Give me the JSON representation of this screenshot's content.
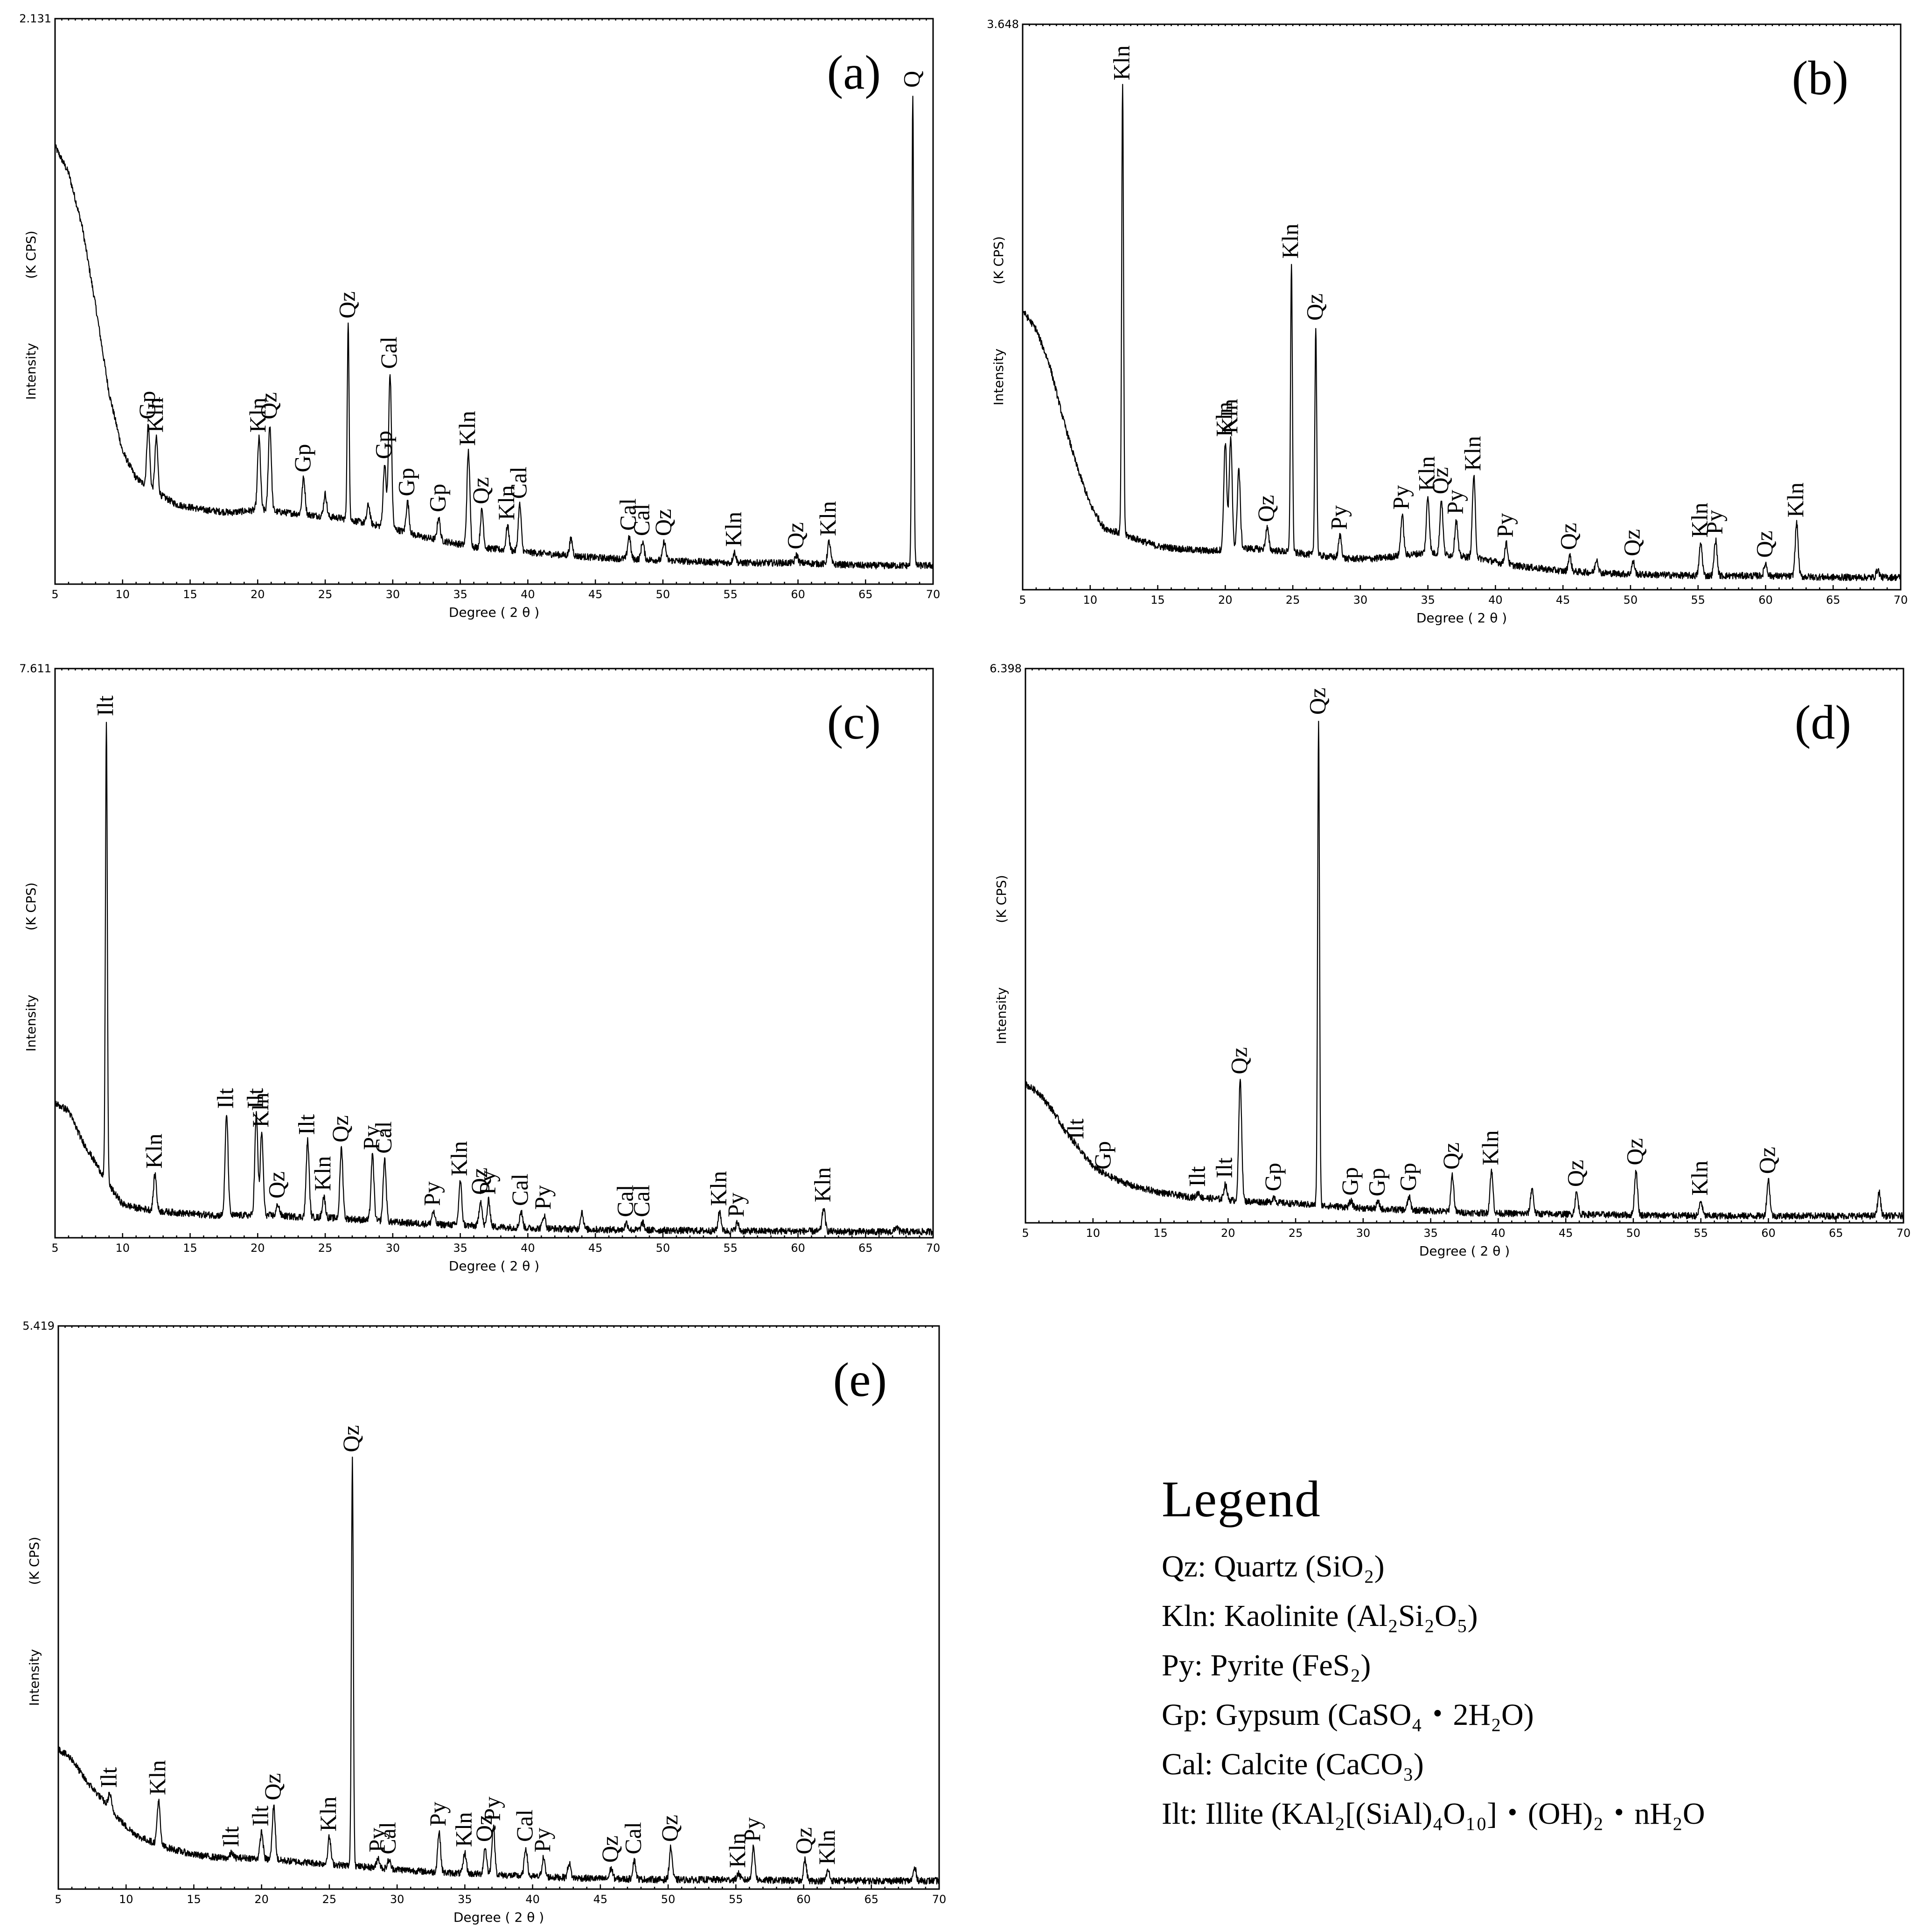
{
  "figure": {
    "x_label": "Degree ( 2 θ )",
    "y_label": "Intensity",
    "y_unit": "(K CPS)"
  },
  "legend": {
    "title": "Legend",
    "entries": [
      {
        "abbr": "Qz",
        "name": "Quartz",
        "formula": "(SiO₂)"
      },
      {
        "abbr": "Kln",
        "name": "Kaolinite",
        "formula": "(Al₂Si₂O₅)"
      },
      {
        "abbr": "Py",
        "name": "Pyrite",
        "formula": "(FeS₂)"
      },
      {
        "abbr": "Gp",
        "name": "Gypsum",
        "formula": "(CaSO₄・2H₂O)"
      },
      {
        "abbr": "Cal",
        "name": "Calcite",
        "formula": "(CaCO₃)"
      },
      {
        "abbr": "Ilt",
        "name": "Illite",
        "formula": "(KAl₂[(SiAl)₄O₁₀]・(OH)₂・nH₂O"
      }
    ]
  },
  "chart_data": [
    {
      "type": "line",
      "panel": "(a)",
      "title": "(a)",
      "xlabel": "Degree ( 2 θ )",
      "ylabel": "Intensity (K CPS)",
      "xlim": [
        5,
        70
      ],
      "ylim": [
        0,
        2.131
      ],
      "ymax_label": "2.131",
      "xticks": [
        5,
        10,
        15,
        20,
        25,
        30,
        35,
        40,
        45,
        50,
        55,
        60,
        65,
        70
      ],
      "background": [
        [
          5,
          1.65
        ],
        [
          6,
          1.55
        ],
        [
          7,
          1.35
        ],
        [
          8,
          1.05
        ],
        [
          9,
          0.72
        ],
        [
          10,
          0.5
        ],
        [
          11,
          0.4
        ],
        [
          12,
          0.36
        ],
        [
          14,
          0.3
        ],
        [
          16,
          0.28
        ],
        [
          18,
          0.27
        ],
        [
          20,
          0.28
        ],
        [
          22,
          0.27
        ],
        [
          24,
          0.26
        ],
        [
          26,
          0.25
        ],
        [
          28,
          0.23
        ],
        [
          30,
          0.21
        ],
        [
          32,
          0.18
        ],
        [
          34,
          0.16
        ],
        [
          36,
          0.14
        ],
        [
          38,
          0.13
        ],
        [
          40,
          0.12
        ],
        [
          45,
          0.1
        ],
        [
          50,
          0.09
        ],
        [
          55,
          0.08
        ],
        [
          60,
          0.08
        ],
        [
          65,
          0.07
        ],
        [
          70,
          0.07
        ]
      ],
      "peaks": [
        {
          "x": 11.9,
          "y": 0.6,
          "label": "Gp"
        },
        {
          "x": 12.5,
          "y": 0.55,
          "label": "Kln"
        },
        {
          "x": 20.1,
          "y": 0.55,
          "label": "Kln"
        },
        {
          "x": 20.9,
          "y": 0.6,
          "label": "Qz"
        },
        {
          "x": 23.4,
          "y": 0.4,
          "label": "Gp"
        },
        {
          "x": 25.0,
          "y": 0.34,
          "label": ""
        },
        {
          "x": 26.7,
          "y": 0.98,
          "label": "Qz"
        },
        {
          "x": 28.2,
          "y": 0.3,
          "label": ""
        },
        {
          "x": 29.4,
          "y": 0.45,
          "label": "Gp"
        },
        {
          "x": 29.8,
          "y": 0.79,
          "label": "Cal"
        },
        {
          "x": 31.1,
          "y": 0.31,
          "label": "Gp"
        },
        {
          "x": 33.4,
          "y": 0.25,
          "label": "Gp"
        },
        {
          "x": 35.6,
          "y": 0.5,
          "label": "Kln"
        },
        {
          "x": 36.6,
          "y": 0.28,
          "label": "Qz"
        },
        {
          "x": 38.5,
          "y": 0.22,
          "label": "Kln"
        },
        {
          "x": 39.4,
          "y": 0.3,
          "label": "Cal"
        },
        {
          "x": 43.2,
          "y": 0.17,
          "label": ""
        },
        {
          "x": 47.5,
          "y": 0.18,
          "label": "Cal"
        },
        {
          "x": 48.5,
          "y": 0.16,
          "label": "Cal"
        },
        {
          "x": 50.1,
          "y": 0.16,
          "label": "Qz"
        },
        {
          "x": 55.3,
          "y": 0.12,
          "label": "Kln"
        },
        {
          "x": 59.9,
          "y": 0.11,
          "label": "Qz"
        },
        {
          "x": 62.3,
          "y": 0.16,
          "label": "Kln"
        },
        {
          "x": 68.5,
          "y": 1.85,
          "label": "Q"
        }
      ]
    },
    {
      "type": "line",
      "panel": "(b)",
      "title": "(b)",
      "xlabel": "Degree ( 2 θ )",
      "ylabel": "Intensity (K CPS)",
      "xlim": [
        5,
        70
      ],
      "ylim": [
        0,
        3.648
      ],
      "ymax_label": "3.648",
      "xticks": [
        5,
        10,
        15,
        20,
        25,
        30,
        35,
        40,
        45,
        50,
        55,
        60,
        65,
        70
      ],
      "background": [
        [
          5,
          1.8
        ],
        [
          6,
          1.68
        ],
        [
          7,
          1.45
        ],
        [
          8,
          1.1
        ],
        [
          9,
          0.8
        ],
        [
          10,
          0.55
        ],
        [
          11,
          0.4
        ],
        [
          13,
          0.34
        ],
        [
          15,
          0.28
        ],
        [
          17,
          0.26
        ],
        [
          19,
          0.25
        ],
        [
          21,
          0.27
        ],
        [
          23,
          0.26
        ],
        [
          25,
          0.24
        ],
        [
          27,
          0.22
        ],
        [
          29,
          0.2
        ],
        [
          31,
          0.2
        ],
        [
          33,
          0.22
        ],
        [
          35,
          0.24
        ],
        [
          37,
          0.22
        ],
        [
          39,
          0.2
        ],
        [
          41,
          0.16
        ],
        [
          45,
          0.12
        ],
        [
          50,
          0.1
        ],
        [
          55,
          0.09
        ],
        [
          60,
          0.09
        ],
        [
          65,
          0.08
        ],
        [
          70,
          0.08
        ]
      ],
      "peaks": [
        {
          "x": 12.4,
          "y": 3.25,
          "label": "Kln"
        },
        {
          "x": 20.0,
          "y": 0.95,
          "label": "Kln"
        },
        {
          "x": 20.4,
          "y": 0.97,
          "label": "Kln"
        },
        {
          "x": 21.0,
          "y": 0.78,
          "label": ""
        },
        {
          "x": 23.1,
          "y": 0.4,
          "label": "Qz"
        },
        {
          "x": 24.9,
          "y": 2.1,
          "label": "Kln"
        },
        {
          "x": 26.7,
          "y": 1.7,
          "label": "Qz"
        },
        {
          "x": 28.5,
          "y": 0.35,
          "label": "Py"
        },
        {
          "x": 33.1,
          "y": 0.48,
          "label": "Py"
        },
        {
          "x": 35.0,
          "y": 0.6,
          "label": "Kln"
        },
        {
          "x": 36.0,
          "y": 0.58,
          "label": "Qz"
        },
        {
          "x": 37.1,
          "y": 0.45,
          "label": "Py"
        },
        {
          "x": 38.4,
          "y": 0.73,
          "label": "Kln"
        },
        {
          "x": 40.8,
          "y": 0.3,
          "label": "Py"
        },
        {
          "x": 45.5,
          "y": 0.22,
          "label": "Qz"
        },
        {
          "x": 47.5,
          "y": 0.2,
          "label": ""
        },
        {
          "x": 50.2,
          "y": 0.18,
          "label": "Qz"
        },
        {
          "x": 55.2,
          "y": 0.3,
          "label": "Kln"
        },
        {
          "x": 56.3,
          "y": 0.32,
          "label": "Py"
        },
        {
          "x": 60.0,
          "y": 0.17,
          "label": "Qz"
        },
        {
          "x": 62.3,
          "y": 0.43,
          "label": "Kln"
        },
        {
          "x": 68.3,
          "y": 0.13,
          "label": ""
        }
      ]
    },
    {
      "type": "line",
      "panel": "(c)",
      "title": "(c)",
      "xlabel": "Degree ( 2 θ )",
      "ylabel": "Intensity (K CPS)",
      "xlim": [
        5,
        70
      ],
      "ylim": [
        0,
        7.611
      ],
      "ymax_label": "7.611",
      "xticks": [
        5,
        10,
        15,
        20,
        25,
        30,
        35,
        40,
        45,
        50,
        55,
        60,
        65,
        70
      ],
      "background": [
        [
          5,
          1.8
        ],
        [
          6,
          1.7
        ],
        [
          7,
          1.3
        ],
        [
          8,
          1.0
        ],
        [
          9,
          0.7
        ],
        [
          10,
          0.45
        ],
        [
          11,
          0.4
        ],
        [
          13,
          0.35
        ],
        [
          15,
          0.32
        ],
        [
          17,
          0.3
        ],
        [
          19,
          0.3
        ],
        [
          21,
          0.3
        ],
        [
          23,
          0.28
        ],
        [
          25,
          0.27
        ],
        [
          27,
          0.25
        ],
        [
          29,
          0.22
        ],
        [
          31,
          0.2
        ],
        [
          33,
          0.18
        ],
        [
          35,
          0.17
        ],
        [
          37,
          0.15
        ],
        [
          40,
          0.13
        ],
        [
          45,
          0.11
        ],
        [
          50,
          0.1
        ],
        [
          55,
          0.09
        ],
        [
          60,
          0.09
        ],
        [
          65,
          0.08
        ],
        [
          70,
          0.08
        ]
      ],
      "peaks": [
        {
          "x": 8.8,
          "y": 6.9,
          "label": "Ilt"
        },
        {
          "x": 12.4,
          "y": 0.85,
          "label": "Kln"
        },
        {
          "x": 17.7,
          "y": 1.65,
          "label": "Ilt"
        },
        {
          "x": 19.9,
          "y": 1.65,
          "label": "Ilt"
        },
        {
          "x": 20.3,
          "y": 1.4,
          "label": "Kln"
        },
        {
          "x": 21.5,
          "y": 0.45,
          "label": "Qz"
        },
        {
          "x": 23.7,
          "y": 1.3,
          "label": "Ilt"
        },
        {
          "x": 24.9,
          "y": 0.55,
          "label": "Kln"
        },
        {
          "x": 26.2,
          "y": 1.2,
          "label": "Qz"
        },
        {
          "x": 28.5,
          "y": 1.1,
          "label": "Py"
        },
        {
          "x": 29.4,
          "y": 1.05,
          "label": "Cal"
        },
        {
          "x": 33.0,
          "y": 0.35,
          "label": "Py"
        },
        {
          "x": 35.0,
          "y": 0.75,
          "label": "Kln"
        },
        {
          "x": 36.5,
          "y": 0.5,
          "label": "Qz"
        },
        {
          "x": 37.1,
          "y": 0.5,
          "label": "Py"
        },
        {
          "x": 39.5,
          "y": 0.35,
          "label": "Cal"
        },
        {
          "x": 41.2,
          "y": 0.3,
          "label": "Py"
        },
        {
          "x": 44.0,
          "y": 0.35,
          "label": ""
        },
        {
          "x": 47.3,
          "y": 0.2,
          "label": "Cal"
        },
        {
          "x": 48.5,
          "y": 0.2,
          "label": "Cal"
        },
        {
          "x": 54.2,
          "y": 0.35,
          "label": "Kln"
        },
        {
          "x": 55.5,
          "y": 0.2,
          "label": "Py"
        },
        {
          "x": 61.9,
          "y": 0.4,
          "label": "Kln"
        },
        {
          "x": 67.3,
          "y": 0.15,
          "label": ""
        }
      ]
    },
    {
      "type": "line",
      "panel": "(d)",
      "title": "(d)",
      "xlabel": "Degree ( 2 θ )",
      "ylabel": "Intensity (K CPS)",
      "xlim": [
        5,
        70
      ],
      "ylim": [
        0,
        6.398
      ],
      "ymax_label": "6.398",
      "xticks": [
        5,
        10,
        15,
        20,
        25,
        30,
        35,
        40,
        45,
        50,
        55,
        60,
        65,
        70
      ],
      "background": [
        [
          5,
          1.6
        ],
        [
          6,
          1.5
        ],
        [
          7,
          1.3
        ],
        [
          8,
          1.05
        ],
        [
          9,
          0.85
        ],
        [
          10,
          0.65
        ],
        [
          11,
          0.55
        ],
        [
          13,
          0.42
        ],
        [
          15,
          0.35
        ],
        [
          17,
          0.3
        ],
        [
          19,
          0.28
        ],
        [
          21,
          0.25
        ],
        [
          23,
          0.24
        ],
        [
          25,
          0.22
        ],
        [
          27,
          0.2
        ],
        [
          29,
          0.18
        ],
        [
          31,
          0.16
        ],
        [
          33,
          0.15
        ],
        [
          35,
          0.14
        ],
        [
          37,
          0.12
        ],
        [
          40,
          0.11
        ],
        [
          45,
          0.1
        ],
        [
          50,
          0.09
        ],
        [
          55,
          0.08
        ],
        [
          60,
          0.08
        ],
        [
          65,
          0.08
        ],
        [
          70,
          0.08
        ]
      ],
      "peaks": [
        {
          "x": 8.8,
          "y": 0.9,
          "label": "Ilt"
        },
        {
          "x": 10.8,
          "y": 0.55,
          "label": "Gp"
        },
        {
          "x": 17.8,
          "y": 0.35,
          "label": "Ilt"
        },
        {
          "x": 19.8,
          "y": 0.45,
          "label": "Ilt"
        },
        {
          "x": 20.9,
          "y": 1.65,
          "label": "Qz"
        },
        {
          "x": 23.4,
          "y": 0.3,
          "label": "Gp"
        },
        {
          "x": 26.7,
          "y": 5.8,
          "label": "Qz"
        },
        {
          "x": 29.1,
          "y": 0.25,
          "label": "Gp"
        },
        {
          "x": 31.1,
          "y": 0.24,
          "label": "Gp"
        },
        {
          "x": 33.4,
          "y": 0.3,
          "label": "Gp"
        },
        {
          "x": 36.6,
          "y": 0.55,
          "label": "Qz"
        },
        {
          "x": 39.5,
          "y": 0.6,
          "label": "Kln"
        },
        {
          "x": 42.5,
          "y": 0.4,
          "label": ""
        },
        {
          "x": 45.8,
          "y": 0.35,
          "label": "Qz"
        },
        {
          "x": 50.2,
          "y": 0.6,
          "label": "Qz"
        },
        {
          "x": 55.0,
          "y": 0.25,
          "label": "Kln"
        },
        {
          "x": 60.0,
          "y": 0.5,
          "label": "Qz"
        },
        {
          "x": 68.2,
          "y": 0.35,
          "label": ""
        }
      ]
    },
    {
      "type": "line",
      "panel": "(e)",
      "title": "(e)",
      "xlabel": "Degree ( 2 θ )",
      "ylabel": "Intensity (K CPS)",
      "xlim": [
        5,
        70
      ],
      "ylim": [
        0,
        5.419
      ],
      "ymax_label": "5.419",
      "xticks": [
        5,
        10,
        15,
        20,
        25,
        30,
        35,
        40,
        45,
        50,
        55,
        60,
        65,
        70
      ],
      "background": [
        [
          5,
          1.35
        ],
        [
          6,
          1.25
        ],
        [
          7,
          1.05
        ],
        [
          8,
          0.9
        ],
        [
          9,
          0.75
        ],
        [
          10,
          0.6
        ],
        [
          11,
          0.5
        ],
        [
          13,
          0.4
        ],
        [
          15,
          0.33
        ],
        [
          17,
          0.3
        ],
        [
          19,
          0.3
        ],
        [
          21,
          0.28
        ],
        [
          23,
          0.26
        ],
        [
          25,
          0.24
        ],
        [
          27,
          0.22
        ],
        [
          29,
          0.2
        ],
        [
          31,
          0.18
        ],
        [
          33,
          0.16
        ],
        [
          35,
          0.15
        ],
        [
          37,
          0.14
        ],
        [
          40,
          0.12
        ],
        [
          45,
          0.1
        ],
        [
          50,
          0.09
        ],
        [
          55,
          0.09
        ],
        [
          60,
          0.08
        ],
        [
          65,
          0.08
        ],
        [
          70,
          0.08
        ]
      ],
      "peaks": [
        {
          "x": 8.8,
          "y": 0.92,
          "label": "Ilt"
        },
        {
          "x": 12.4,
          "y": 0.85,
          "label": "Kln"
        },
        {
          "x": 17.8,
          "y": 0.35,
          "label": "Ilt"
        },
        {
          "x": 20.0,
          "y": 0.55,
          "label": "Ilt"
        },
        {
          "x": 20.9,
          "y": 0.8,
          "label": "Qz"
        },
        {
          "x": 25.0,
          "y": 0.5,
          "label": "Kln"
        },
        {
          "x": 26.7,
          "y": 4.15,
          "label": "Qz"
        },
        {
          "x": 28.6,
          "y": 0.3,
          "label": "Py"
        },
        {
          "x": 29.4,
          "y": 0.28,
          "label": "Cal"
        },
        {
          "x": 33.1,
          "y": 0.55,
          "label": "Py"
        },
        {
          "x": 35.0,
          "y": 0.35,
          "label": "Kln"
        },
        {
          "x": 36.5,
          "y": 0.4,
          "label": "Qz"
        },
        {
          "x": 37.1,
          "y": 0.6,
          "label": "Py"
        },
        {
          "x": 39.5,
          "y": 0.4,
          "label": "Cal"
        },
        {
          "x": 40.8,
          "y": 0.3,
          "label": "Py"
        },
        {
          "x": 42.7,
          "y": 0.25,
          "label": ""
        },
        {
          "x": 45.8,
          "y": 0.2,
          "label": "Qz"
        },
        {
          "x": 47.5,
          "y": 0.28,
          "label": "Cal"
        },
        {
          "x": 50.2,
          "y": 0.4,
          "label": "Qz"
        },
        {
          "x": 55.2,
          "y": 0.15,
          "label": "Kln"
        },
        {
          "x": 56.3,
          "y": 0.4,
          "label": "Py"
        },
        {
          "x": 60.1,
          "y": 0.28,
          "label": "Qz"
        },
        {
          "x": 61.8,
          "y": 0.18,
          "label": "Kln"
        },
        {
          "x": 68.2,
          "y": 0.2,
          "label": ""
        }
      ]
    }
  ]
}
